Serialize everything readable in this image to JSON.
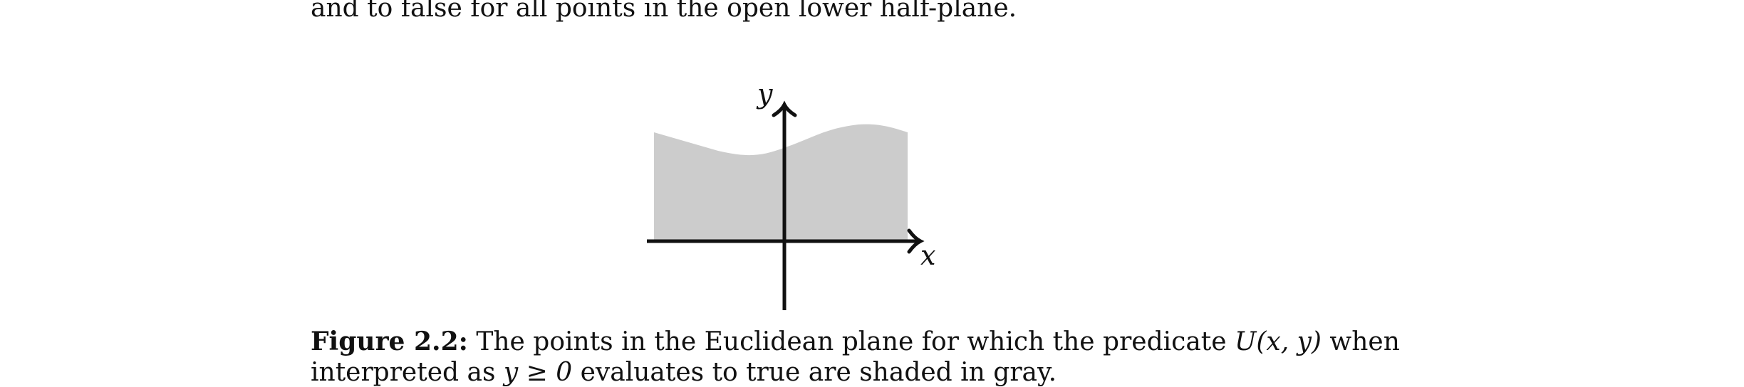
{
  "text": {
    "top_line": "and to false for all points in the open lower half-plane.",
    "caption": {
      "label": "Figure 2.2:",
      "line1_before": " The points in the Euclidean plane for which the predicate ",
      "predicate": "U(x, y)",
      "line1_after": " when",
      "line2_prefix": "interpreted as ",
      "condition": "y ≥ 0",
      "line2_suffix": " evaluates to true are shaded in gray."
    }
  },
  "figure": {
    "axis_labels": {
      "x": "x",
      "y": "y"
    },
    "colors": {
      "shaded_region": "#cccccc",
      "axes": "#111111"
    }
  }
}
